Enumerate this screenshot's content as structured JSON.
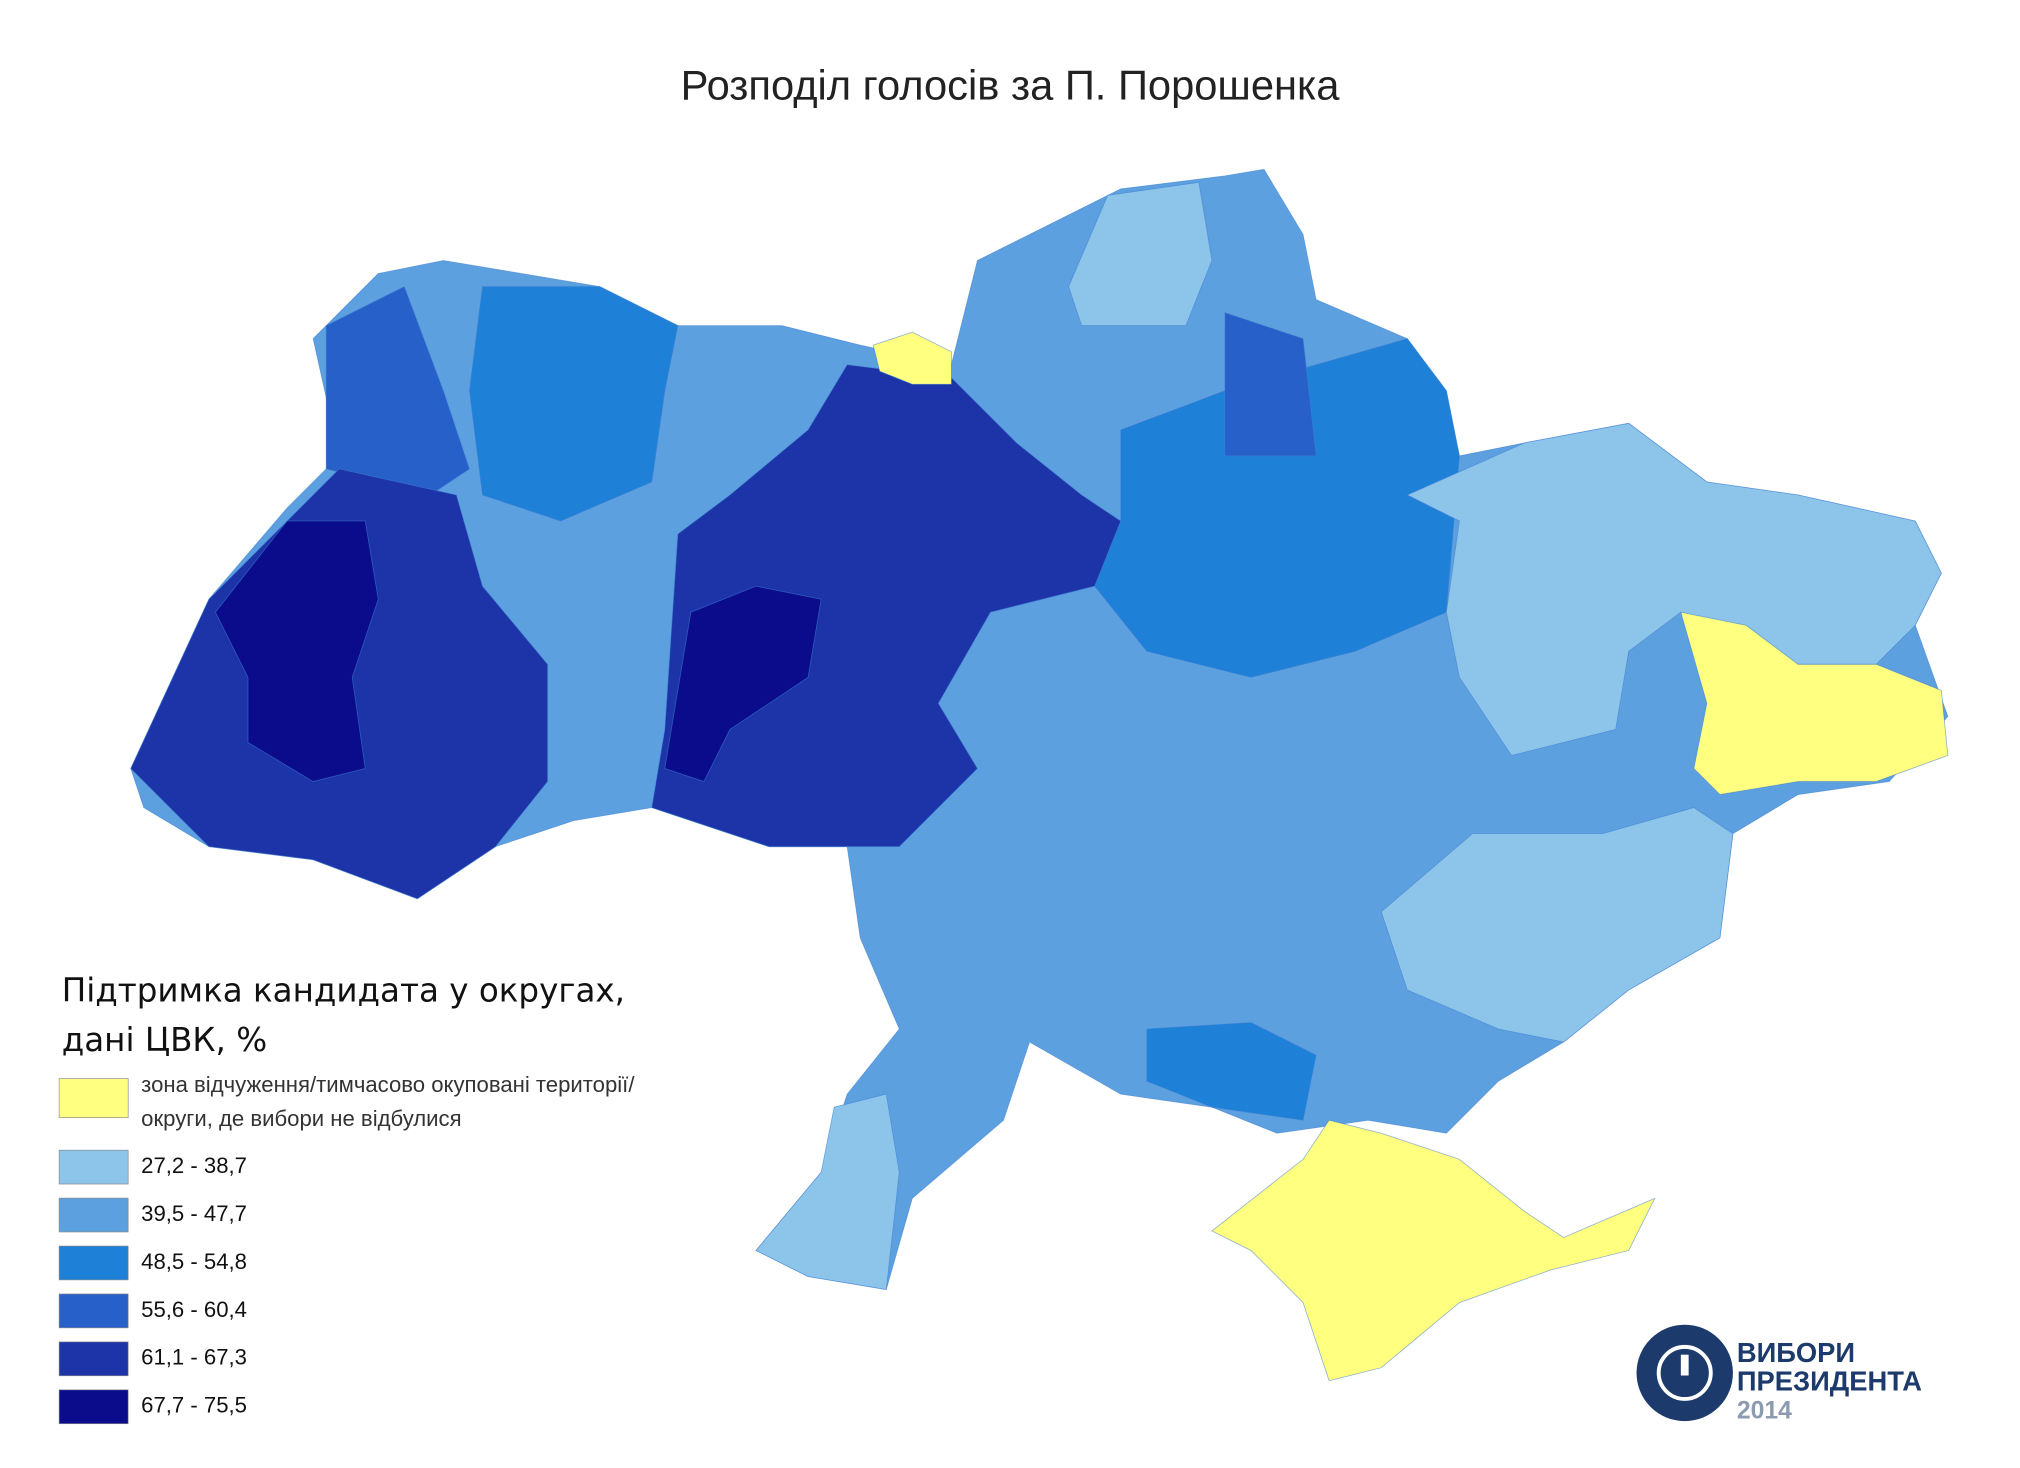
{
  "title": "Розподіл голосів за П. Порошенка",
  "legend": {
    "title": [
      "Підтримка кандидата у округах,",
      "дані ЦВК, %"
    ],
    "items": [
      {
        "label": [
          "зона відчуження/тимчасово окуповані території/",
          "округи, де вибори не відбулися"
        ],
        "color": "#ffff80"
      },
      {
        "label": "27,2 - 38,7",
        "color": "#8cc4ea"
      },
      {
        "label": "39,5 - 47,7",
        "color": "#5ca0e0"
      },
      {
        "label": "48,5 - 54,8",
        "color": "#1f80d8"
      },
      {
        "label": "55,6 - 60,4",
        "color": "#2660c8"
      },
      {
        "label": "61,1 - 67,3",
        "color": "#1c34a8"
      },
      {
        "label": "67,7 - 75,5",
        "color": "#0a0c8c"
      }
    ]
  },
  "logo": {
    "line1": "ВИБОРИ",
    "line2": "ПРЕЗИДЕНТА",
    "year": "2014"
  }
}
